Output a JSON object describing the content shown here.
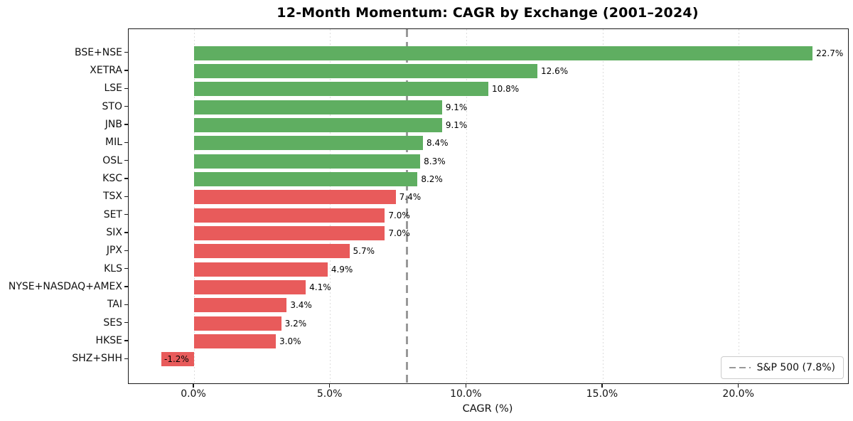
{
  "title": "12-Month Momentum: CAGR by Exchange (2001–2024)",
  "chart_data": {
    "type": "bar",
    "orientation": "horizontal",
    "title": "12-Month Momentum: CAGR by Exchange (2001–2024)",
    "xlabel": "CAGR (%)",
    "ylabel": "",
    "categories": [
      "BSE+NSE",
      "XETRA",
      "LSE",
      "STO",
      "JNB",
      "MIL",
      "OSL",
      "KSC",
      "TSX",
      "SET",
      "SIX",
      "JPX",
      "KLS",
      "NYSE+NASDAQ+AMEX",
      "TAI",
      "SES",
      "HKSE",
      "SHZ+SHH"
    ],
    "values": [
      22.7,
      12.6,
      10.8,
      9.1,
      9.1,
      8.4,
      8.3,
      8.2,
      7.4,
      7.0,
      7.0,
      5.7,
      4.9,
      4.1,
      3.4,
      3.2,
      3.0,
      -1.2
    ],
    "value_labels": [
      "22.7%",
      "12.6%",
      "10.8%",
      "9.1%",
      "9.1%",
      "8.4%",
      "8.3%",
      "8.2%",
      "7.4%",
      "7.0%",
      "7.0%",
      "5.7%",
      "4.9%",
      "4.1%",
      "3.4%",
      "3.2%",
      "3.0%",
      "-1.2%"
    ],
    "xlim": [
      -2.4,
      24.0
    ],
    "xticks": [
      {
        "value": 0,
        "label": "0.0%"
      },
      {
        "value": 5,
        "label": "5.0%"
      },
      {
        "value": 10,
        "label": "10.0%"
      },
      {
        "value": 15,
        "label": "15.0%"
      },
      {
        "value": 20,
        "label": "20.0%"
      }
    ],
    "grid": "vertical-dotted",
    "legend_position": "lower right",
    "reference_line": {
      "value": 7.8,
      "label": "S&P 500 (7.8%)",
      "style": "dashed"
    },
    "color_threshold": 7.8,
    "colors": {
      "above_threshold": "#5fae61",
      "below_threshold": "#e85b5b",
      "reference_line": "#999999",
      "grid": "#dcdcdc",
      "spine": "#1a1a1a"
    }
  }
}
